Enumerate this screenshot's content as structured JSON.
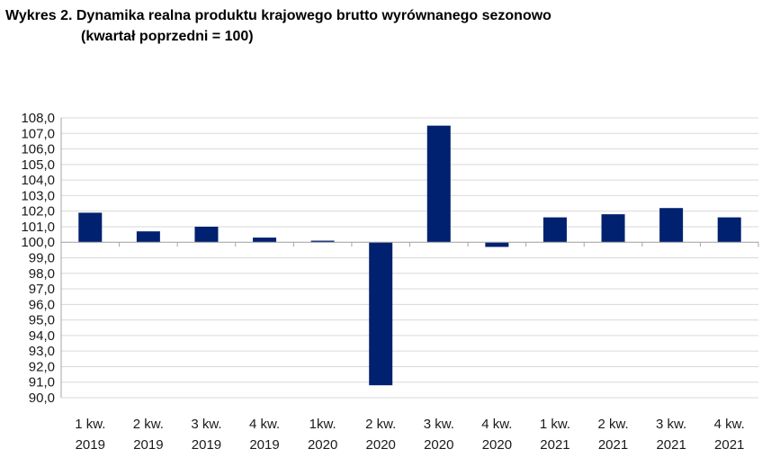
{
  "title_line1": "Wykres 2. Dynamika realna produktu krajowego brutto wyrównanego sezonowo",
  "title_line2": "(kwartał poprzedni = 100)",
  "colors": {
    "bar": "#002170",
    "grid": "#d9d9d9",
    "axis": "#a6a6a6"
  },
  "chart_data": {
    "type": "bar",
    "categories": [
      [
        "1 kw.",
        "2019"
      ],
      [
        "2 kw.",
        "2019"
      ],
      [
        "3 kw.",
        "2019"
      ],
      [
        "4 kw.",
        "2019"
      ],
      [
        "1kw.",
        "2020"
      ],
      [
        "2 kw.",
        "2020"
      ],
      [
        "3 kw.",
        "2020"
      ],
      [
        "4 kw.",
        "2020"
      ],
      [
        "1 kw.",
        "2021"
      ],
      [
        "2 kw.",
        "2021"
      ],
      [
        "3 kw.",
        "2021"
      ],
      [
        "4 kw.",
        "2021"
      ]
    ],
    "values": [
      101.9,
      100.7,
      101.0,
      100.3,
      100.1,
      90.8,
      107.5,
      99.7,
      101.6,
      101.8,
      102.2,
      101.6
    ],
    "baseline": 100.0,
    "ylim": [
      90.0,
      108.0
    ],
    "ytick_step": 1.0,
    "ytick_labels": [
      "108,0",
      "107,0",
      "106,0",
      "105,0",
      "104,0",
      "103,0",
      "102,0",
      "101,0",
      "100,0",
      "99,0",
      "98,0",
      "97,0",
      "96,0",
      "95,0",
      "94,0",
      "93,0",
      "92,0",
      "91,0",
      "90,0"
    ],
    "grid": true,
    "legend": "none"
  }
}
